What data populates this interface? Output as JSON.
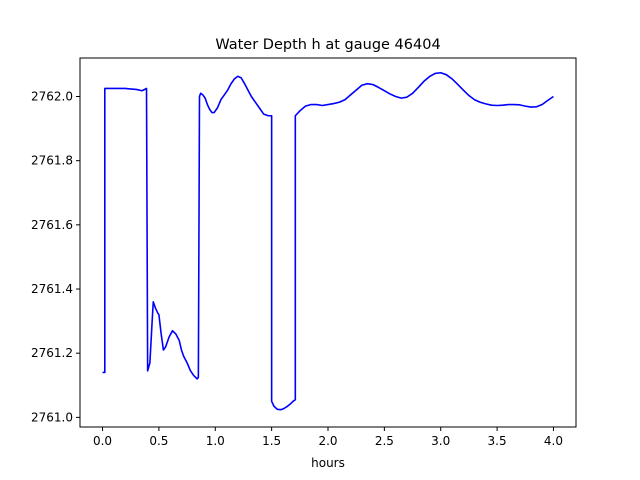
{
  "chart_data": {
    "type": "line",
    "title": "Water Depth h at gauge 46404",
    "xlabel": "hours",
    "ylabel": "",
    "xlim": [
      -0.2,
      4.2
    ],
    "ylim": [
      2760.97,
      2762.12
    ],
    "xticks": [
      0.0,
      0.5,
      1.0,
      1.5,
      2.0,
      2.5,
      3.0,
      3.5,
      4.0
    ],
    "xtick_labels": [
      "0.0",
      "0.5",
      "1.0",
      "1.5",
      "2.0",
      "2.5",
      "3.0",
      "3.5",
      "4.0"
    ],
    "yticks": [
      2761.0,
      2761.2,
      2761.4,
      2761.6,
      2761.8,
      2762.0
    ],
    "ytick_labels": [
      "2761.0",
      "2761.2",
      "2761.4",
      "2761.6",
      "2761.8",
      "2762.0"
    ],
    "grid": false,
    "series": [
      {
        "color": "#0000ff",
        "x": [
          0.0,
          0.02,
          0.02,
          0.1,
          0.2,
          0.3,
          0.35,
          0.39,
          0.39,
          0.4,
          0.42,
          0.44,
          0.45,
          0.47,
          0.49,
          0.5,
          0.52,
          0.54,
          0.56,
          0.59,
          0.62,
          0.65,
          0.68,
          0.7,
          0.72,
          0.75,
          0.78,
          0.81,
          0.84,
          0.85,
          0.86,
          0.87,
          0.89,
          0.91,
          0.93,
          0.95,
          0.97,
          0.99,
          1.02,
          1.05,
          1.08,
          1.11,
          1.14,
          1.17,
          1.2,
          1.23,
          1.26,
          1.29,
          1.32,
          1.35,
          1.39,
          1.43,
          1.47,
          1.5,
          1.5,
          1.52,
          1.55,
          1.58,
          1.6,
          1.63,
          1.66,
          1.69,
          1.71,
          1.71,
          1.75,
          1.8,
          1.85,
          1.9,
          1.95,
          2.0,
          2.05,
          2.1,
          2.15,
          2.2,
          2.25,
          2.3,
          2.35,
          2.4,
          2.45,
          2.5,
          2.55,
          2.6,
          2.65,
          2.7,
          2.75,
          2.8,
          2.85,
          2.9,
          2.95,
          3.0,
          3.05,
          3.1,
          3.15,
          3.2,
          3.25,
          3.3,
          3.35,
          3.4,
          3.45,
          3.5,
          3.55,
          3.6,
          3.65,
          3.7,
          3.75,
          3.8,
          3.85,
          3.9,
          3.95,
          4.0
        ],
        "y": [
          2761.14,
          2761.14,
          2762.025,
          2762.025,
          2762.025,
          2762.022,
          2762.018,
          2762.025,
          2762.025,
          2761.145,
          2761.17,
          2761.3,
          2761.36,
          2761.34,
          2761.325,
          2761.32,
          2761.26,
          2761.21,
          2761.22,
          2761.25,
          2761.27,
          2761.26,
          2761.24,
          2761.21,
          2761.19,
          2761.17,
          2761.145,
          2761.13,
          2761.12,
          2761.125,
          2762.0,
          2762.01,
          2762.005,
          2761.995,
          2761.975,
          2761.96,
          2761.95,
          2761.95,
          2761.965,
          2761.99,
          2762.005,
          2762.02,
          2762.04,
          2762.055,
          2762.063,
          2762.058,
          2762.04,
          2762.02,
          2762.0,
          2761.985,
          2761.965,
          2761.945,
          2761.94,
          2761.94,
          2761.05,
          2761.035,
          2761.025,
          2761.024,
          2761.026,
          2761.032,
          2761.04,
          2761.05,
          2761.055,
          2761.94,
          2761.955,
          2761.97,
          2761.975,
          2761.975,
          2761.972,
          2761.975,
          2761.978,
          2761.982,
          2761.99,
          2762.005,
          2762.02,
          2762.035,
          2762.04,
          2762.037,
          2762.028,
          2762.018,
          2762.008,
          2762.0,
          2761.995,
          2761.998,
          2762.01,
          2762.028,
          2762.047,
          2762.062,
          2762.072,
          2762.074,
          2762.068,
          2762.055,
          2762.038,
          2762.02,
          2762.003,
          2761.99,
          2761.982,
          2761.977,
          2761.973,
          2761.972,
          2761.973,
          2761.975,
          2761.975,
          2761.974,
          2761.97,
          2761.967,
          2761.968,
          2761.975,
          2761.988,
          2762.0
        ]
      }
    ]
  }
}
